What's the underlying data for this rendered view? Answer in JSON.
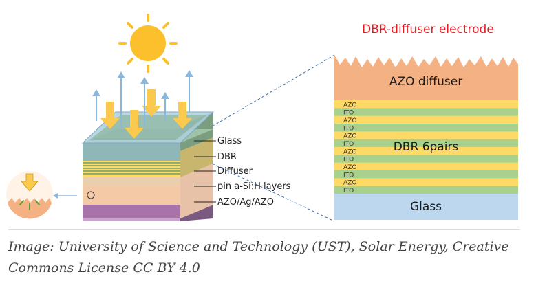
{
  "diagram": {
    "title": "DBR-diffuser electrode",
    "cell_labels": [
      "Glass",
      "DBR",
      "Diffuser",
      "pin a-Si:H layers",
      "AZO/Ag/AZO"
    ],
    "zoom": {
      "top_layer": "AZO diffuser",
      "dbr_label": "DBR 6pairs",
      "dbr_layers": [
        "AZO",
        "ITO",
        "AZO",
        "ITO",
        "AZO",
        "ITO",
        "AZO",
        "ITO",
        "AZO",
        "ITO",
        "AZO",
        "ITO"
      ],
      "bottom_layer": "Glass"
    }
  },
  "colors": {
    "sun": "#fcc02d",
    "light_arrow": "#fcc94f",
    "reflect_arrow": "#8ab7de",
    "azo_diffuser": "#f4b183",
    "azo_band": "#ffd966",
    "ito_band": "#a9d18e",
    "glass": "#bdd7ee",
    "title": "#e8191f"
  },
  "caption": "Image: University of Science and Technology (UST), Solar Energy, Creative Commons License CC BY 4.0"
}
